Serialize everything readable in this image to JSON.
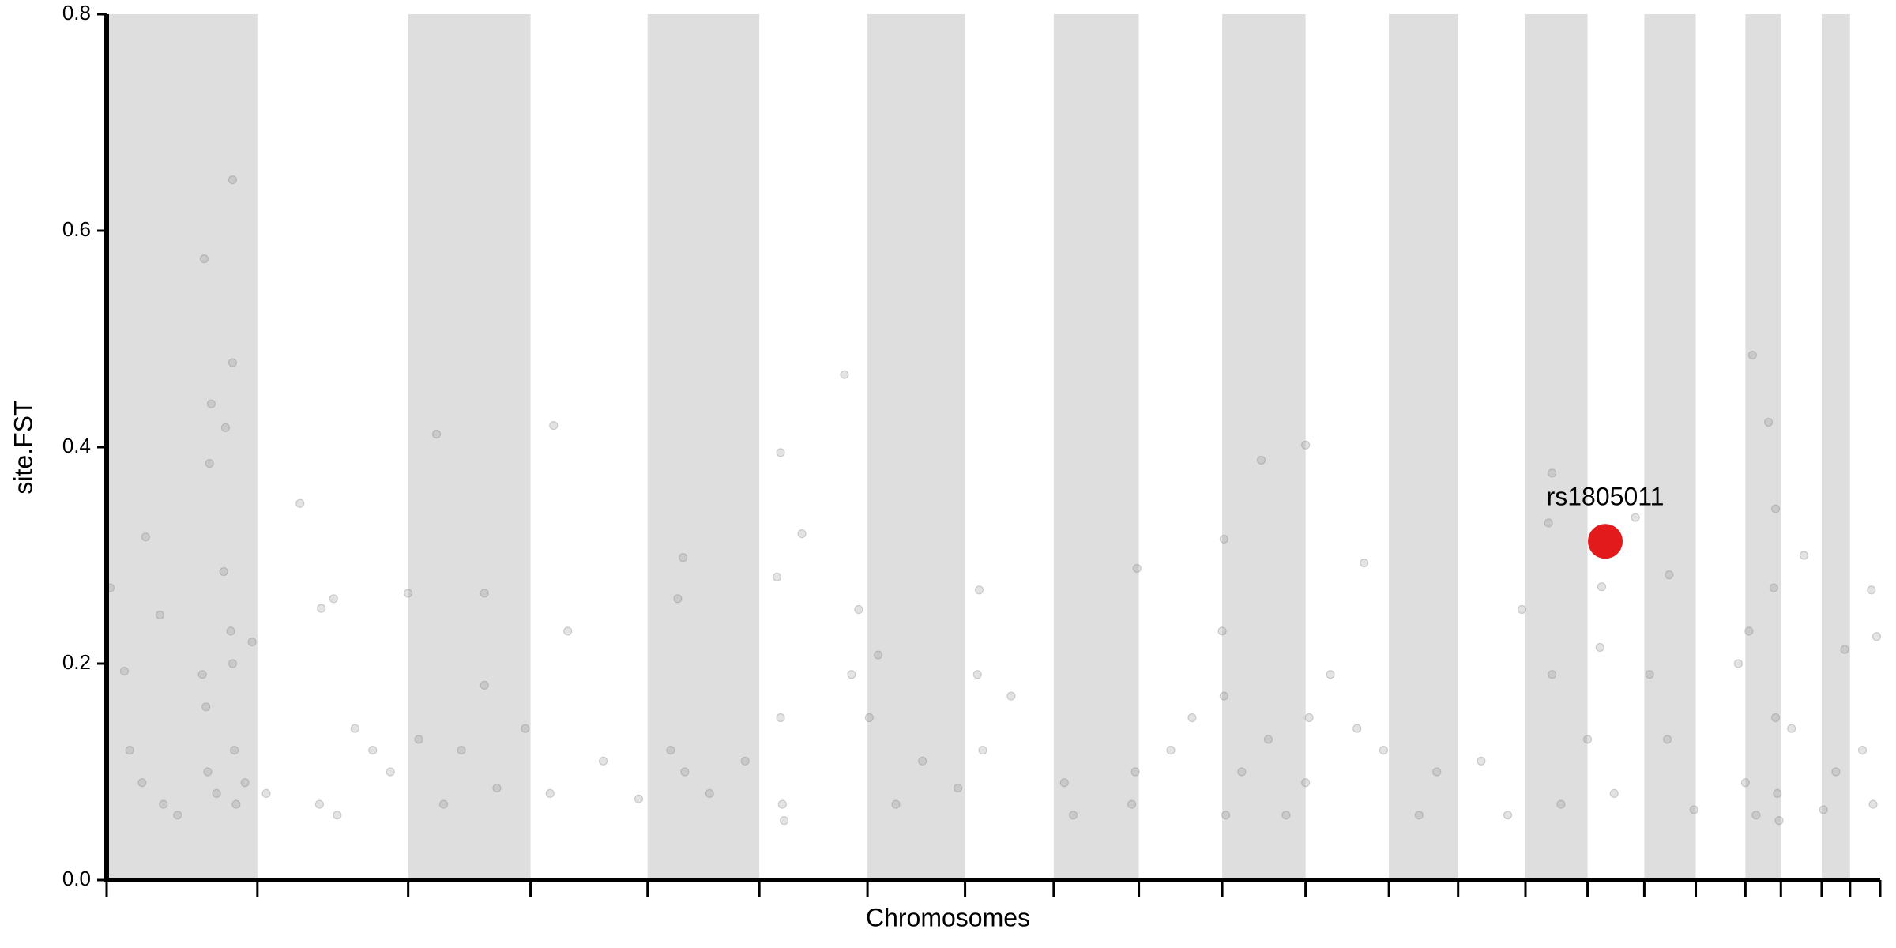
{
  "chart_data": {
    "type": "scatter",
    "xlabel": "Chromosomes",
    "ylabel": "site.FST",
    "xlim": [
      0,
      1000
    ],
    "ylim": [
      0,
      0.8
    ],
    "yticks": [
      {
        "value": 0,
        "label": "0.0"
      },
      0.2,
      0.4,
      0.6,
      0.8
    ],
    "xticks": [
      0,
      85,
      170,
      239,
      305,
      368,
      429,
      484,
      534,
      582,
      629,
      676,
      723,
      762,
      800,
      835,
      867,
      896,
      924,
      944,
      967,
      983,
      1000
    ],
    "band_color": "#dedede",
    "series": [
      {
        "color": "#808080",
        "x": [
          55,
          71,
          71,
          59,
          67,
          58,
          22,
          109,
          186,
          252,
          416,
          380,
          651,
          676,
          815,
          928,
          937,
          941,
          957,
          325,
          709,
          581,
          121,
          213,
          170,
          492,
          995,
          998,
          435,
          630,
          862,
          881,
          843,
          2,
          10,
          13,
          20,
          30,
          32,
          40,
          54,
          56,
          57,
          62,
          66,
          70,
          71,
          72,
          73,
          78,
          82,
          90,
          120,
          128,
          130,
          140,
          150,
          160,
          176,
          190,
          200,
          213,
          220,
          236,
          250,
          260,
          280,
          300,
          318,
          322,
          326,
          340,
          360,
          378,
          380,
          381,
          382,
          392,
          420,
          424,
          430,
          445,
          460,
          480,
          491,
          494,
          510,
          540,
          545,
          578,
          580,
          600,
          612,
          629,
          630,
          631,
          640,
          655,
          665,
          676,
          678,
          690,
          705,
          720,
          740,
          750,
          775,
          790,
          798,
          813,
          815,
          820,
          835,
          842,
          850,
          870,
          880,
          895,
          920,
          924,
          926,
          930,
          940,
          941,
          942,
          943,
          950,
          968,
          975,
          980,
          990,
          996
        ],
        "values": [
          0.574,
          0.647,
          0.478,
          0.44,
          0.418,
          0.385,
          0.317,
          0.348,
          0.412,
          0.42,
          0.467,
          0.395,
          0.388,
          0.402,
          0.376,
          0.485,
          0.423,
          0.343,
          0.3,
          0.298,
          0.293,
          0.288,
          0.251,
          0.265,
          0.265,
          0.268,
          0.268,
          0.225,
          0.208,
          0.315,
          0.335,
          0.282,
          0.271,
          0.27,
          0.193,
          0.12,
          0.09,
          0.245,
          0.07,
          0.06,
          0.19,
          0.16,
          0.1,
          0.08,
          0.285,
          0.23,
          0.2,
          0.12,
          0.07,
          0.09,
          0.22,
          0.08,
          0.07,
          0.26,
          0.06,
          0.14,
          0.12,
          0.1,
          0.13,
          0.07,
          0.12,
          0.18,
          0.085,
          0.14,
          0.08,
          0.23,
          0.11,
          0.075,
          0.12,
          0.26,
          0.1,
          0.08,
          0.11,
          0.28,
          0.15,
          0.07,
          0.055,
          0.32,
          0.19,
          0.25,
          0.15,
          0.07,
          0.11,
          0.085,
          0.19,
          0.12,
          0.17,
          0.09,
          0.06,
          0.07,
          0.1,
          0.12,
          0.15,
          0.23,
          0.17,
          0.06,
          0.1,
          0.13,
          0.06,
          0.09,
          0.15,
          0.19,
          0.14,
          0.12,
          0.06,
          0.1,
          0.11,
          0.06,
          0.25,
          0.33,
          0.19,
          0.07,
          0.13,
          0.215,
          0.08,
          0.19,
          0.13,
          0.065,
          0.2,
          0.09,
          0.23,
          0.06,
          0.27,
          0.15,
          0.08,
          0.055,
          0.14,
          0.065,
          0.1,
          0.213,
          0.12,
          0.07
        ]
      }
    ],
    "highlight": {
      "label": "rs1805011",
      "x": 845,
      "value": 0.313,
      "color": "#e31a1c"
    }
  }
}
